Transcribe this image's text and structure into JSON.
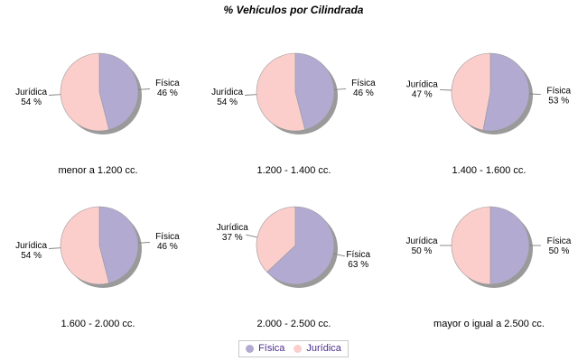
{
  "title": "% Vehículos por Cilindrada",
  "pct_suffix": " %",
  "colors": {
    "fisica": "#B3AAD2",
    "juridica": "#FBCECC",
    "shadow": "#9A9A9A",
    "slice_outline": "#999999",
    "leader_line": "#808080",
    "label_text": "#000000",
    "title_text": "#000000",
    "caption_text": "#000000",
    "legend_text": "#4B2D8C",
    "legend_border": "#C8C8C8"
  },
  "legend": {
    "items": [
      {
        "name": "Física",
        "key": "fisica",
        "color": "#B3AAD2"
      },
      {
        "name": "Jurídica",
        "key": "juridica",
        "color": "#FBCECC"
      }
    ]
  },
  "chart_data": [
    {
      "type": "pie",
      "category": "menor a 1.200 cc.",
      "slices": [
        {
          "name": "Física",
          "key": "fisica",
          "pct": 46
        },
        {
          "name": "Jurídica",
          "key": "juridica",
          "pct": 54
        }
      ]
    },
    {
      "type": "pie",
      "category": "1.200 - 1.400 cc.",
      "slices": [
        {
          "name": "Física",
          "key": "fisica",
          "pct": 46
        },
        {
          "name": "Jurídica",
          "key": "juridica",
          "pct": 54
        }
      ]
    },
    {
      "type": "pie",
      "category": "1.400 - 1.600 cc.",
      "slices": [
        {
          "name": "Física",
          "key": "fisica",
          "pct": 53
        },
        {
          "name": "Jurídica",
          "key": "juridica",
          "pct": 47
        }
      ]
    },
    {
      "type": "pie",
      "category": "1.600 - 2.000 cc.",
      "slices": [
        {
          "name": "Física",
          "key": "fisica",
          "pct": 46
        },
        {
          "name": "Jurídica",
          "key": "juridica",
          "pct": 54
        }
      ]
    },
    {
      "type": "pie",
      "category": "2.000 - 2.500 cc.",
      "slices": [
        {
          "name": "Física",
          "key": "fisica",
          "pct": 63
        },
        {
          "name": "Jurídica",
          "key": "juridica",
          "pct": 37
        }
      ]
    },
    {
      "type": "pie",
      "category": "mayor o igual a 2.500 cc.",
      "slices": [
        {
          "name": "Física",
          "key": "fisica",
          "pct": 50
        },
        {
          "name": "Jurídica",
          "key": "juridica",
          "pct": 50
        }
      ]
    }
  ]
}
